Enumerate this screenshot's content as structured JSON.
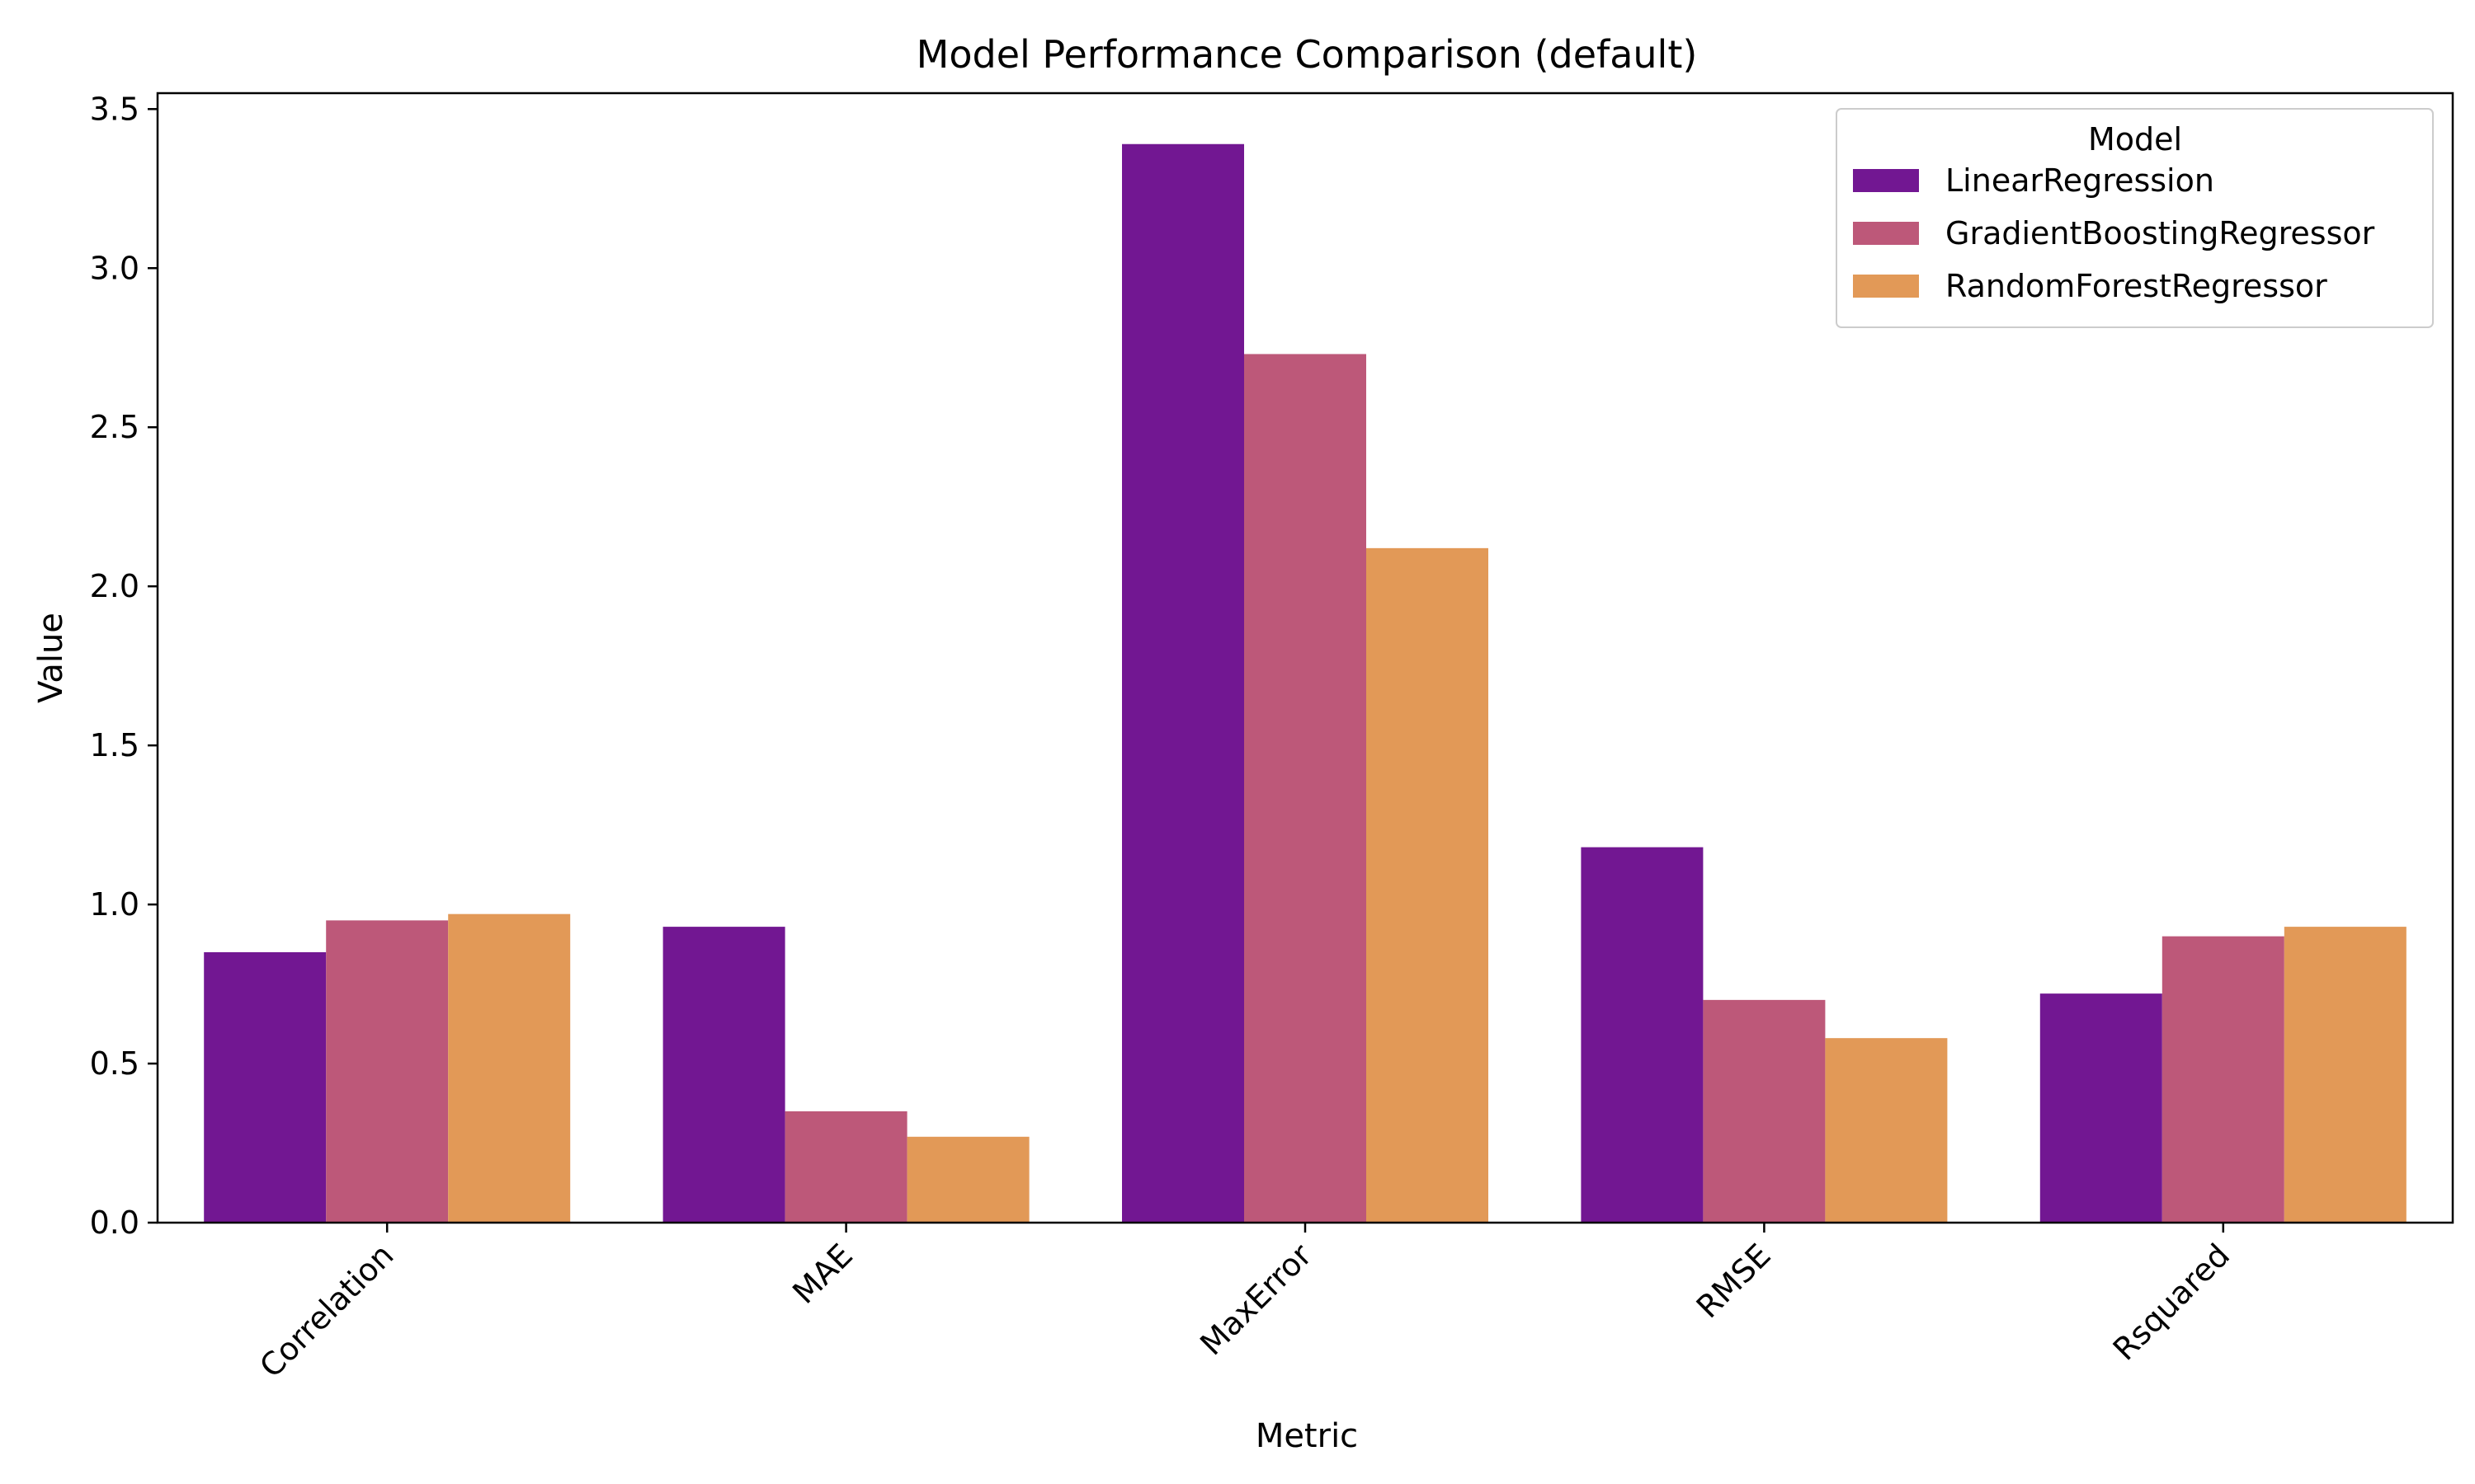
{
  "chart_data": {
    "type": "bar",
    "title": "Model Performance Comparison (default)",
    "xlabel": "Metric",
    "ylabel": "Value",
    "categories": [
      "Correlation",
      "MAE",
      "MaxError",
      "RMSE",
      "Rsquared"
    ],
    "series": [
      {
        "name": "LinearRegression",
        "color": "#721792",
        "values": [
          0.85,
          0.93,
          3.39,
          1.18,
          0.72
        ]
      },
      {
        "name": "GradientBoostingRegressor",
        "color": "#bd5879",
        "values": [
          0.95,
          0.35,
          2.73,
          0.7,
          0.9
        ]
      },
      {
        "name": "RandomForestRegressor",
        "color": "#e29957",
        "values": [
          0.97,
          0.27,
          2.12,
          0.58,
          0.93
        ]
      }
    ],
    "ylim": [
      0,
      3.55
    ],
    "yticks": [
      0.0,
      0.5,
      1.0,
      1.5,
      2.0,
      2.5,
      3.0,
      3.5
    ],
    "ytick_labels": [
      "0.0",
      "0.5",
      "1.0",
      "1.5",
      "2.0",
      "2.5",
      "3.0",
      "3.5"
    ],
    "xtick_rotation": "45",
    "grid": false,
    "legend": {
      "title": "Model",
      "position": "top-right"
    }
  }
}
